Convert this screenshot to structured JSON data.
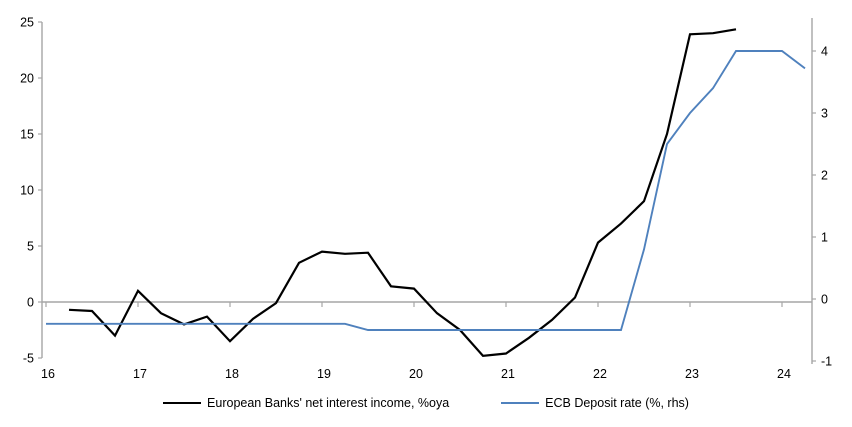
{
  "page": {
    "background": "#ffffff",
    "title": ""
  },
  "chart_data": {
    "type": "line",
    "title": "",
    "xlabel": "",
    "ylabel_left": "",
    "ylabel_right": "",
    "grid": "zero-line-only",
    "legend_position": "bottom-center",
    "x_axis": {
      "ticks": [
        16,
        17,
        18,
        19,
        20,
        21,
        22,
        23,
        24
      ],
      "range": [
        16,
        24.33
      ]
    },
    "left_axis": {
      "ticks": [
        25,
        20,
        15,
        10,
        5,
        0,
        -5
      ],
      "range": [
        -5,
        25
      ]
    },
    "right_axis": {
      "ticks": [
        4,
        3,
        2,
        1,
        0,
        -1
      ],
      "range": [
        -1,
        4.55
      ]
    },
    "colors": {
      "axis": "#a6a6a6",
      "zero_gridline": "#a6a6a6",
      "text": "#000000",
      "series1": "#000000",
      "series2": "#4f81bd"
    },
    "series": [
      {
        "name": "European Banks' net interest income, %oya",
        "axis": "left",
        "color": "#000000",
        "frequency": "quarterly",
        "x": [
          16.25,
          16.5,
          16.75,
          17.0,
          17.25,
          17.5,
          17.75,
          18.0,
          18.25,
          18.5,
          18.75,
          19.0,
          19.25,
          19.5,
          19.75,
          20.0,
          20.25,
          20.5,
          20.75,
          21.0,
          21.25,
          21.5,
          21.75,
          22.0,
          22.25,
          22.5,
          22.75,
          23.0,
          23.25,
          23.5
        ],
        "y": [
          -0.7,
          -0.8,
          -3.0,
          1.0,
          -1.0,
          -2.0,
          -1.3,
          -3.5,
          -1.5,
          -0.1,
          3.5,
          4.5,
          4.3,
          4.4,
          1.4,
          1.2,
          -1.0,
          -2.5,
          -4.8,
          -4.6,
          -3.2,
          -1.6,
          0.4,
          5.3,
          7.0,
          9.0,
          15.0,
          23.9,
          24.0,
          24.35
        ]
      },
      {
        "name": "ECB Deposit rate (%, rhs)",
        "axis": "right",
        "color": "#4f81bd",
        "frequency": "quarterly",
        "x": [
          16.0,
          16.25,
          16.5,
          16.75,
          17.0,
          17.25,
          17.5,
          17.75,
          18.0,
          18.25,
          18.5,
          18.75,
          19.0,
          19.25,
          19.5,
          19.75,
          20.0,
          20.25,
          20.5,
          20.75,
          21.0,
          21.25,
          21.5,
          21.75,
          22.0,
          22.25,
          22.5,
          22.75,
          23.0,
          23.25,
          23.5,
          23.75,
          24.0,
          24.25
        ],
        "y": [
          -0.4,
          -0.4,
          -0.4,
          -0.4,
          -0.4,
          -0.4,
          -0.4,
          -0.4,
          -0.4,
          -0.4,
          -0.4,
          -0.4,
          -0.4,
          -0.4,
          -0.5,
          -0.5,
          -0.5,
          -0.5,
          -0.5,
          -0.5,
          -0.5,
          -0.5,
          -0.5,
          -0.5,
          -0.5,
          -0.5,
          0.8,
          2.5,
          3.0,
          3.4,
          4.0,
          4.0,
          4.0,
          3.72
        ]
      }
    ]
  }
}
